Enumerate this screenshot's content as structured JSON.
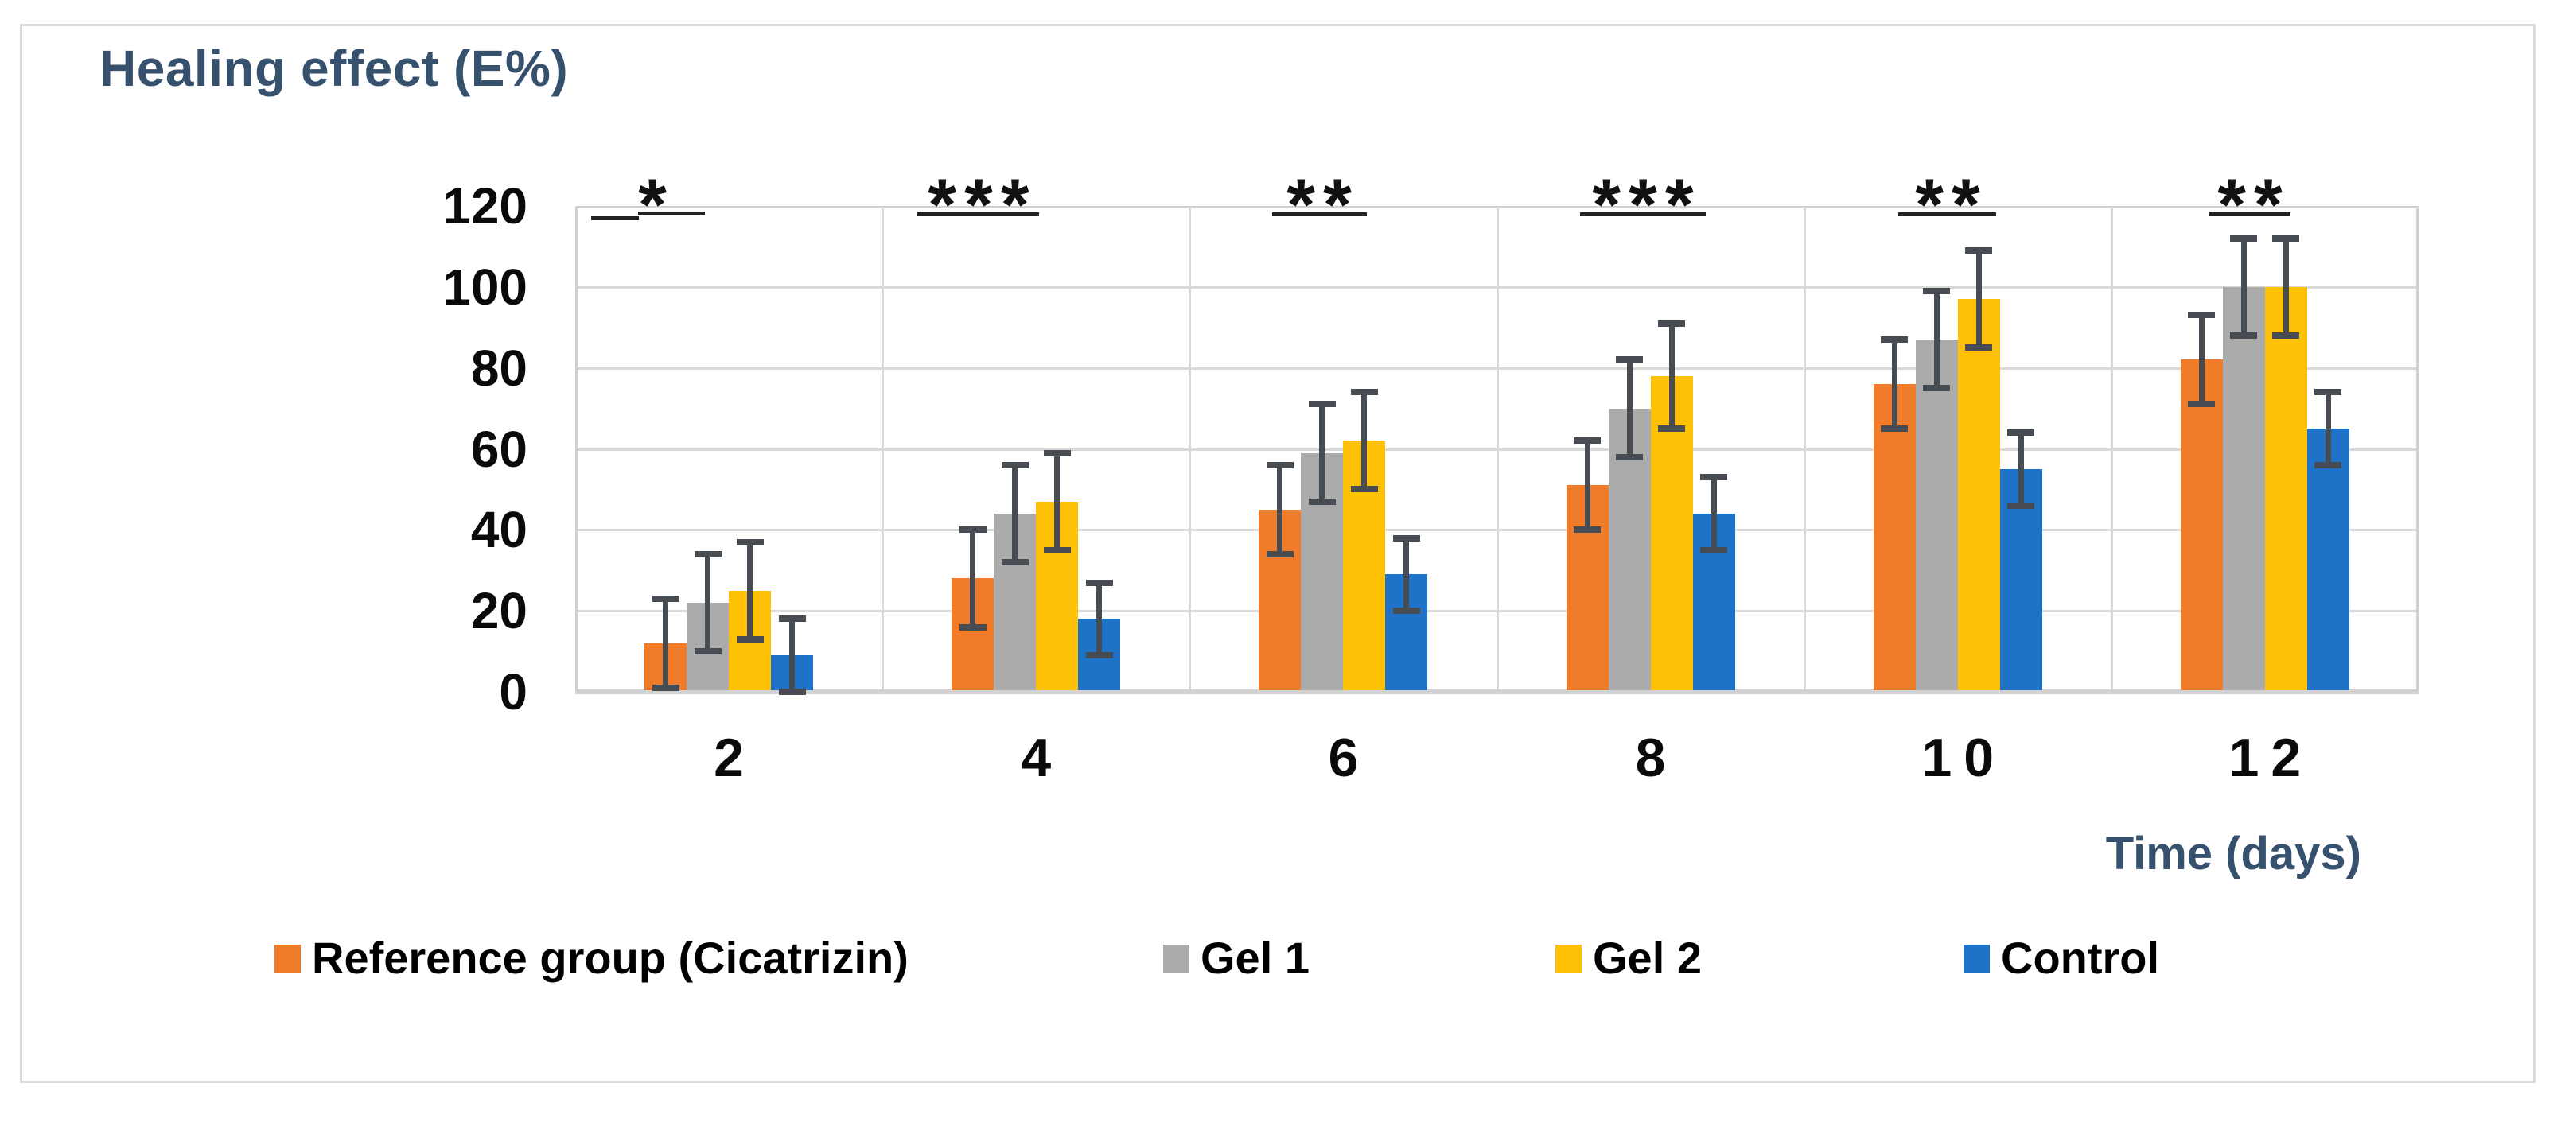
{
  "chart_data": {
    "type": "bar",
    "title": "Healing effect (E%)",
    "xlabel": "Time (days)",
    "ylabel": "",
    "categories": [
      "2",
      "4",
      "6",
      "8",
      "10",
      "12"
    ],
    "series": [
      {
        "name": "Reference group (Cicatrizin)",
        "color": "#F07B28",
        "values": [
          12,
          28,
          45,
          51,
          76,
          82
        ],
        "errors": [
          11,
          12,
          11,
          11,
          11,
          11
        ]
      },
      {
        "name": "Gel 1",
        "color": "#ABABAB",
        "values": [
          22,
          44,
          59,
          70,
          87,
          100
        ],
        "errors": [
          12,
          12,
          12,
          12,
          12,
          12
        ]
      },
      {
        "name": "Gel 2",
        "color": "#FFC105",
        "values": [
          25,
          47,
          62,
          78,
          97,
          100
        ],
        "errors": [
          12,
          12,
          12,
          13,
          12,
          12
        ]
      },
      {
        "name": "Control",
        "color": "#1E72C8",
        "values": [
          9,
          18,
          29,
          44,
          55,
          65
        ],
        "errors": [
          9,
          9,
          9,
          9,
          9,
          9
        ]
      }
    ],
    "significance": [
      "*",
      "***",
      "**",
      "***",
      "**",
      "**"
    ],
    "ylim": [
      0,
      120
    ],
    "ytick_step": 20,
    "yticks": [
      "0",
      "20",
      "40",
      "60",
      "80",
      "100",
      "120"
    ],
    "grid": true,
    "legend_position": "bottom",
    "error_bar_color": "#474B52",
    "accent_text_color": "#35516E"
  }
}
